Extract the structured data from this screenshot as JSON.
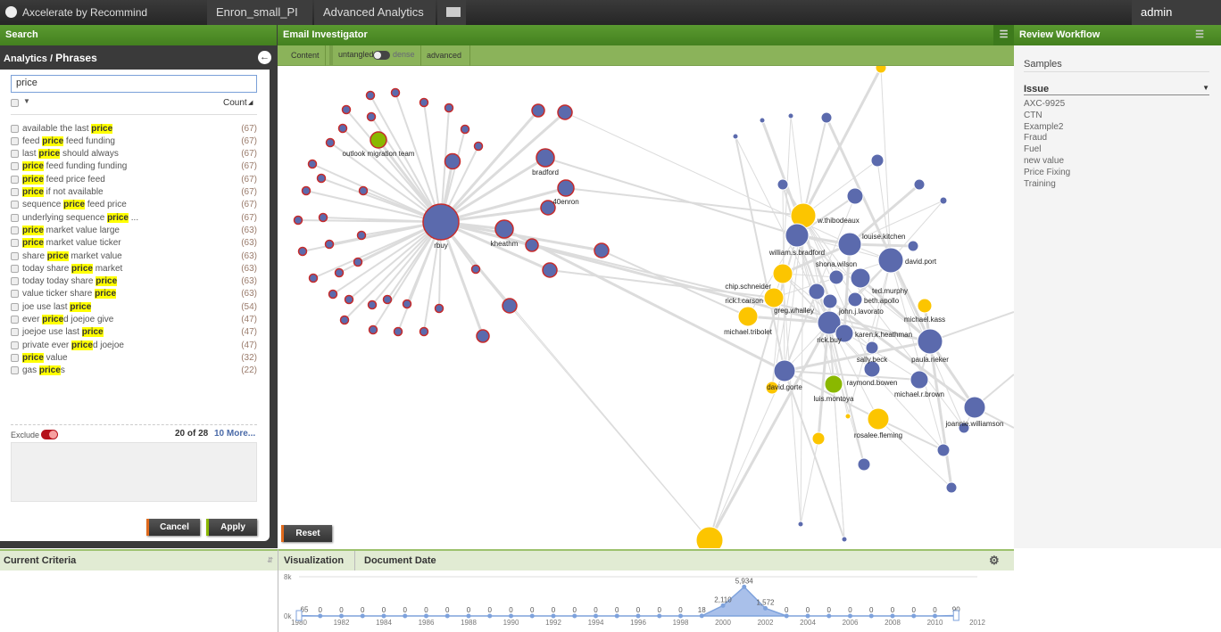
{
  "app": {
    "title": "Axcelerate by Recommind",
    "tabs": [
      "Enron_small_PI",
      "Advanced Analytics"
    ],
    "user": "admin"
  },
  "search": {
    "header": "Search",
    "breadcrumb_prefix": "Analytics / ",
    "breadcrumb_current": "Phrases",
    "query": "price",
    "sort_label": "Count",
    "phrases": [
      {
        "pre": "available the last ",
        "hl": "price",
        "post": "",
        "count": "(67)"
      },
      {
        "pre": "feed ",
        "hl": "price",
        "post": " feed funding",
        "count": "(67)"
      },
      {
        "pre": "last ",
        "hl": "price",
        "post": " should always",
        "count": "(67)"
      },
      {
        "pre": "",
        "hl": "price",
        "post": " feed funding funding",
        "count": "(67)"
      },
      {
        "pre": "",
        "hl": "price",
        "post": " feed price feed",
        "count": "(67)"
      },
      {
        "pre": "",
        "hl": "price",
        "post": " if not available",
        "count": "(67)"
      },
      {
        "pre": "sequence ",
        "hl": "price",
        "post": " feed price",
        "count": "(67)"
      },
      {
        "pre": "underlying sequence ",
        "hl": "price",
        "post": " ...",
        "count": "(67)"
      },
      {
        "pre": "",
        "hl": "price",
        "post": " market value large",
        "count": "(63)"
      },
      {
        "pre": "",
        "hl": "price",
        "post": " market value ticker",
        "count": "(63)"
      },
      {
        "pre": "share ",
        "hl": "price",
        "post": " market value",
        "count": "(63)"
      },
      {
        "pre": "today share ",
        "hl": "price",
        "post": " market",
        "count": "(63)"
      },
      {
        "pre": "today today share ",
        "hl": "price",
        "post": "",
        "count": "(63)"
      },
      {
        "pre": "value ticker share ",
        "hl": "price",
        "post": "",
        "count": "(63)"
      },
      {
        "pre": "joe use last ",
        "hl": "price",
        "post": "",
        "count": "(54)"
      },
      {
        "pre": "ever ",
        "hl": "price",
        "post": "d joejoe give",
        "count": "(47)"
      },
      {
        "pre": "joejoe use last ",
        "hl": "price",
        "post": "",
        "count": "(47)"
      },
      {
        "pre": "private ever ",
        "hl": "price",
        "post": "d joejoe",
        "count": "(47)"
      },
      {
        "pre": "",
        "hl": "price",
        "post": " value",
        "count": "(32)"
      },
      {
        "pre": "gas ",
        "hl": "price",
        "post": "s",
        "count": "(22)"
      }
    ],
    "exclude_label": "Exclude",
    "shown": "20 of 28",
    "more_link": "10 More...",
    "cancel": "Cancel",
    "apply": "Apply"
  },
  "investigator": {
    "header": "Email Investigator",
    "toolbar": {
      "content": "Content",
      "untangled": "untangled",
      "dense": "dense",
      "advanced": "advanced"
    },
    "reset": "Reset",
    "colors": {
      "blue": "#5b6aad",
      "yellow": "#fcc500",
      "green": "#8ab800",
      "red_border": "#c62b2b"
    },
    "labels": {
      "rbuy": "rbuy",
      "outlook": "outlook migration team",
      "kheathm": "kheathm",
      "bradford": "bradford",
      "40enron": "40enron",
      "jim.fallon": "jim.fallon",
      "thibodeaux": "william.s.bradford",
      "wsb": "william.s.bradford",
      "thib": "w.thibodeaux",
      "louise": "louise.kitchen",
      "david": "david.port",
      "chip": "chip.schneider",
      "shona": "shona.wilson",
      "ted": "ted.murphy",
      "carson": "rick.l.carson",
      "greg": "greg.whalley",
      "lavorato": "john.j.lavorato",
      "beth": "beth.apollo",
      "kass": "michael.kass",
      "tribolet": "michael.tribolet",
      "rickbuy": "rick.buy",
      "karen": "karen.k.heathman",
      "sally": "sally.beck",
      "paula": "paula.rieker",
      "gorte": "david.gorte",
      "bowen": "raymond.bowen",
      "brown": "michael.r.brown",
      "luis": "luis.montoya",
      "joannie": "joannie.williamson",
      "rosalee": "rosalee.fleming"
    }
  },
  "review": {
    "header": "Review Workflow",
    "samples": "Samples",
    "issue_label": "Issue",
    "issues": [
      "AXC-9925",
      "CTN",
      "Example2",
      "Fraud",
      "Fuel",
      "new value",
      "Price Fixing",
      "Training"
    ]
  },
  "bottom": {
    "criteria": "Current Criteria",
    "visualization": "Visualization",
    "document_date": "Document Date"
  },
  "chart_data": {
    "type": "area",
    "x": [
      1980,
      1981,
      1982,
      1983,
      1984,
      1985,
      1986,
      1987,
      1988,
      1989,
      1990,
      1991,
      1992,
      1993,
      1994,
      1995,
      1996,
      1997,
      1998,
      1999,
      2000,
      2001,
      2002,
      2003,
      2004,
      2005,
      2006,
      2007,
      2008,
      2009,
      2010,
      2011
    ],
    "values": [
      65,
      0,
      0,
      0,
      0,
      0,
      0,
      0,
      0,
      0,
      0,
      0,
      0,
      0,
      0,
      0,
      0,
      0,
      0,
      18,
      2110,
      5934,
      1572,
      0,
      0,
      0,
      0,
      0,
      0,
      0,
      0,
      90
    ],
    "value_labels": [
      "65",
      "0",
      "0",
      "0",
      "0",
      "0",
      "0",
      "0",
      "0",
      "0",
      "0",
      "0",
      "0",
      "0",
      "0",
      "0",
      "0",
      "0",
      "0",
      "18",
      "2,110",
      "5,934",
      "1,572",
      "0",
      "0",
      "0",
      "0",
      "0",
      "0",
      "0",
      "0",
      "90"
    ],
    "xticks": [
      "1980",
      "1982",
      "1984",
      "1986",
      "1988",
      "1990",
      "1992",
      "1994",
      "1996",
      "1998",
      "2000",
      "2002",
      "2004",
      "2006",
      "2008",
      "2010",
      "2012"
    ],
    "yticks": [
      "0k",
      "8k"
    ],
    "xlim": [
      1980,
      2012
    ],
    "ylim": [
      0,
      8000
    ],
    "color": "#7ea2dc"
  }
}
